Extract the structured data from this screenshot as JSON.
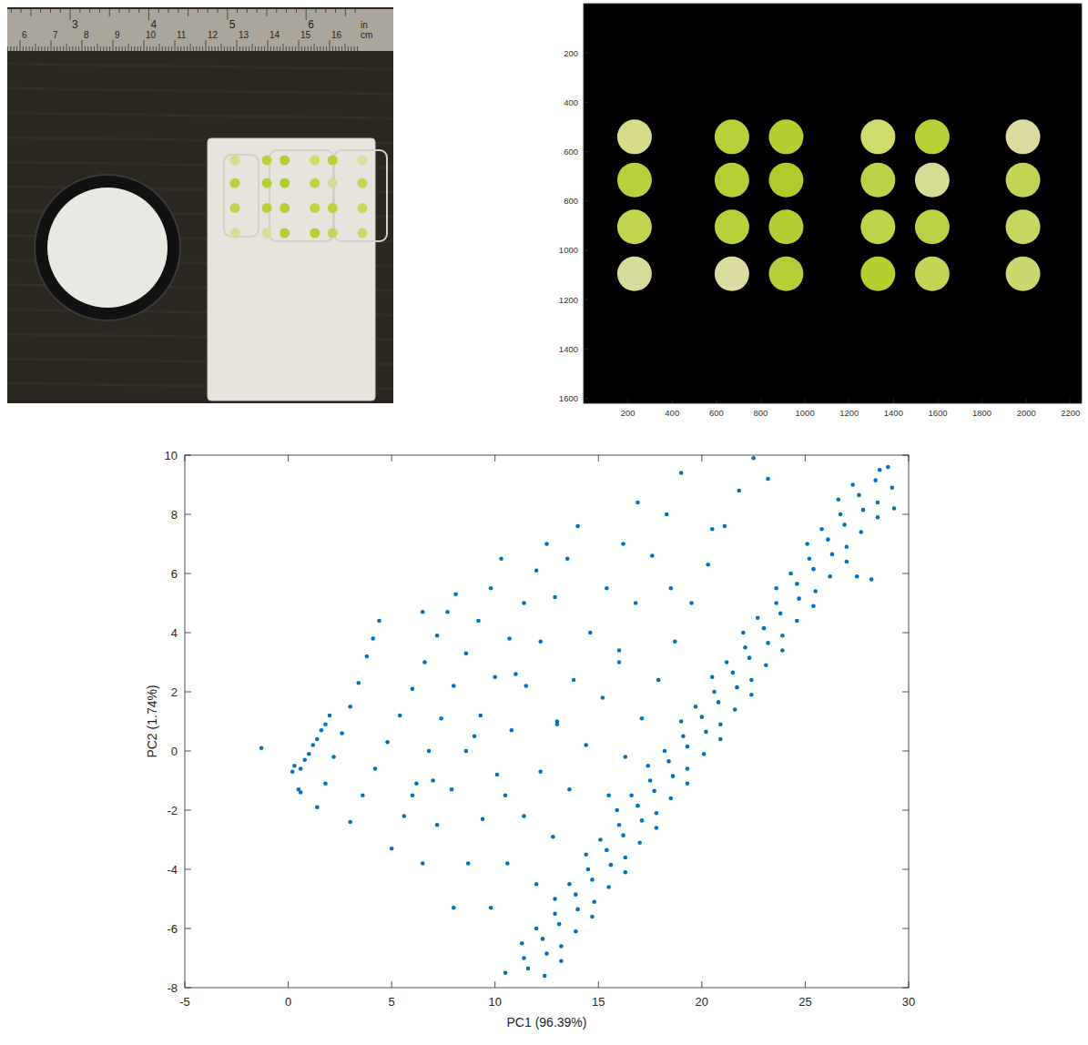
{
  "photo": {
    "ruler_cm": [
      6,
      7,
      8,
      9,
      10,
      11,
      12,
      13,
      14,
      15,
      16
    ],
    "ruler_in": [
      3,
      4,
      5,
      6
    ],
    "unit_labels": [
      "in",
      "cm"
    ]
  },
  "chart_data": [
    {
      "type": "image",
      "xlim": [
        0,
        2250
      ],
      "ylim": [
        1620,
        0
      ],
      "xticks": [
        200,
        400,
        600,
        800,
        1000,
        1200,
        1400,
        1600,
        1800,
        2000,
        2200
      ],
      "yticks": [
        200,
        400,
        600,
        800,
        1000,
        1200,
        1400,
        1600
      ],
      "x": [
        230,
        670,
        915,
        1330,
        1575,
        1985,
        230,
        670,
        915,
        1330,
        1575,
        1985,
        230,
        670,
        915,
        1330,
        1575,
        1985,
        230,
        670,
        915,
        1330,
        1575,
        1985
      ],
      "values": [
        540,
        540,
        540,
        540,
        540,
        540,
        715,
        715,
        715,
        715,
        715,
        715,
        905,
        905,
        905,
        905,
        905,
        905,
        1095,
        1095,
        1095,
        1095,
        1095,
        1095
      ],
      "colors": [
        "#d8dc8a",
        "#b8d13a",
        "#b4cf30",
        "#cfdb6a",
        "#b6d035",
        "#dcdca0",
        "#b9d03e",
        "#b5cf35",
        "#b0cc2c",
        "#bcd248",
        "#d6dc95",
        "#c4d555",
        "#c2d450",
        "#b8d03a",
        "#b4ce33",
        "#c0d44a",
        "#bcd245",
        "#c8d760",
        "#d8dc9a",
        "#dadca0",
        "#b6cf38",
        "#b4cf2e",
        "#c4d456",
        "#cbd870"
      ],
      "marker": "circle"
    },
    {
      "type": "scatter",
      "x_label": "PC1 (96.39%)",
      "y_label": "PC2 (1.74%)",
      "xlim": [
        -5,
        30
      ],
      "ylim": [
        -8,
        10
      ],
      "xticks": [
        -5,
        0,
        5,
        10,
        15,
        20,
        25,
        30
      ],
      "yticks": [
        -8,
        -6,
        -4,
        -2,
        0,
        2,
        4,
        6,
        8,
        10
      ],
      "color": "#0072bd",
      "marker": "dot",
      "x": [
        10.5,
        11.6,
        12.4,
        11.4,
        12.5,
        13.2,
        11.3,
        12.3,
        13.2,
        12.0,
        13.1,
        13.9,
        12.9,
        14.0,
        14.7,
        12.9,
        13.9,
        14.8,
        13.6,
        14.7,
        15.5,
        14.5,
        15.6,
        16.3,
        14.4,
        15.4,
        16.3,
        15.1,
        16.2,
        17.0,
        16.0,
        17.1,
        17.8,
        15.9,
        16.9,
        17.8,
        16.6,
        17.7,
        18.5,
        17.5,
        18.6,
        19.3,
        17.4,
        18.4,
        19.3,
        18.2,
        19.3,
        20.1,
        19.1,
        20.2,
        20.9,
        19.0,
        20.0,
        20.9,
        19.7,
        20.8,
        21.6,
        20.6,
        21.7,
        22.4,
        20.5,
        21.5,
        22.4,
        21.2,
        22.3,
        23.1,
        22.1,
        23.2,
        23.9,
        22.0,
        23.0,
        23.9,
        22.7,
        23.8,
        24.6,
        23.6,
        24.7,
        25.4,
        23.6,
        24.6,
        25.5,
        24.3,
        25.4,
        26.2,
        25.2,
        26.3,
        27.0,
        25.1,
        26.1,
        27.0,
        25.8,
        26.9,
        27.7,
        26.7,
        27.8,
        28.5,
        26.6,
        27.6,
        28.5,
        27.3,
        28.4,
        29.2,
        28.6,
        29.0,
        27.5,
        28.2,
        29.3,
        -1.3,
        0.2,
        0.3,
        0.5,
        0.6,
        0.6,
        0.8,
        1.0,
        1.2,
        1.4,
        1.6,
        1.8,
        2.0,
        1.4,
        1.8,
        2.2,
        2.6,
        3.0,
        3.4,
        3.8,
        4.1,
        4.4,
        3.0,
        3.6,
        4.2,
        4.8,
        5.4,
        6.0,
        6.6,
        7.2,
        7.7,
        8.1,
        5.0,
        5.6,
        6.2,
        6.8,
        7.4,
        8.0,
        8.6,
        9.2,
        9.8,
        10.3,
        6.5,
        7.2,
        7.9,
        8.6,
        9.3,
        10.0,
        10.7,
        11.4,
        12.0,
        12.5,
        8.0,
        8.7,
        9.4,
        10.1,
        10.8,
        11.5,
        12.2,
        12.9,
        13.5,
        14.0,
        9.8,
        10.6,
        11.4,
        12.2,
        13.0,
        13.8,
        14.6,
        15.4,
        16.2,
        16.9,
        12.0,
        12.8,
        13.6,
        14.4,
        15.2,
        16.0,
        16.8,
        17.6,
        18.3,
        19.0,
        15.5,
        16.3,
        17.1,
        17.9,
        18.7,
        19.5,
        20.3,
        21.1,
        21.8,
        22.5,
        7.0,
        9.0,
        11.0,
        13.0,
        10.5,
        6.0,
        16.0,
        18.5,
        20.5,
        23.2,
        6.5
      ],
      "values": [
        -7.5,
        -7.35,
        -7.6,
        -7.0,
        -6.85,
        -7.1,
        -6.5,
        -6.35,
        -6.6,
        -6.0,
        -5.85,
        -6.1,
        -5.5,
        -5.35,
        -5.6,
        -5.0,
        -4.85,
        -5.1,
        -4.5,
        -4.35,
        -4.6,
        -4.0,
        -3.85,
        -4.1,
        -3.5,
        -3.35,
        -3.6,
        -3.0,
        -2.85,
        -3.1,
        -2.5,
        -2.35,
        -2.6,
        -2.0,
        -1.85,
        -2.1,
        -1.5,
        -1.35,
        -1.6,
        -1.0,
        -0.85,
        -1.1,
        -0.5,
        -0.35,
        -0.6,
        0.0,
        0.15,
        -0.1,
        0.5,
        0.65,
        0.4,
        1.0,
        1.15,
        0.9,
        1.5,
        1.65,
        1.4,
        2.0,
        2.15,
        1.9,
        2.5,
        2.65,
        2.4,
        3.0,
        3.15,
        2.9,
        3.5,
        3.65,
        3.4,
        4.0,
        4.15,
        3.9,
        4.5,
        4.65,
        4.4,
        5.0,
        5.15,
        4.9,
        5.5,
        5.65,
        5.4,
        6.0,
        6.15,
        5.9,
        6.5,
        6.65,
        6.4,
        7.0,
        7.15,
        6.9,
        7.5,
        7.65,
        7.4,
        8.0,
        8.15,
        7.9,
        8.5,
        8.65,
        8.4,
        9.0,
        9.15,
        8.9,
        9.5,
        9.6,
        5.9,
        5.8,
        8.2,
        0.1,
        -0.7,
        -0.5,
        -1.3,
        -1.4,
        -0.6,
        -0.3,
        -0.1,
        0.2,
        0.4,
        0.7,
        0.9,
        1.2,
        -1.9,
        -1.1,
        -0.2,
        0.6,
        1.5,
        2.3,
        3.2,
        3.8,
        4.4,
        -2.4,
        -1.5,
        -0.6,
        0.3,
        1.2,
        2.1,
        3.0,
        3.9,
        4.7,
        5.3,
        -3.3,
        -2.2,
        -1.1,
        0.0,
        1.1,
        2.2,
        3.3,
        4.4,
        5.5,
        6.5,
        -3.8,
        -2.5,
        -1.3,
        0.0,
        1.2,
        2.5,
        3.8,
        5.0,
        6.1,
        7.0,
        -5.3,
        -3.8,
        -2.3,
        -0.8,
        0.7,
        2.2,
        3.7,
        5.2,
        6.5,
        7.6,
        -5.3,
        -3.8,
        -2.2,
        -0.7,
        0.9,
        2.4,
        4.0,
        5.5,
        7.0,
        8.4,
        -4.5,
        -2.9,
        -1.3,
        0.2,
        1.8,
        3.4,
        5.0,
        6.6,
        8.0,
        9.4,
        -1.5,
        -0.2,
        1.1,
        2.4,
        3.7,
        5.0,
        6.3,
        7.6,
        8.8,
        9.9,
        -1.0,
        0.5,
        2.6,
        1.0,
        -1.5,
        -1.5,
        3.0,
        5.5,
        7.5,
        9.2,
        4.7
      ]
    }
  ]
}
